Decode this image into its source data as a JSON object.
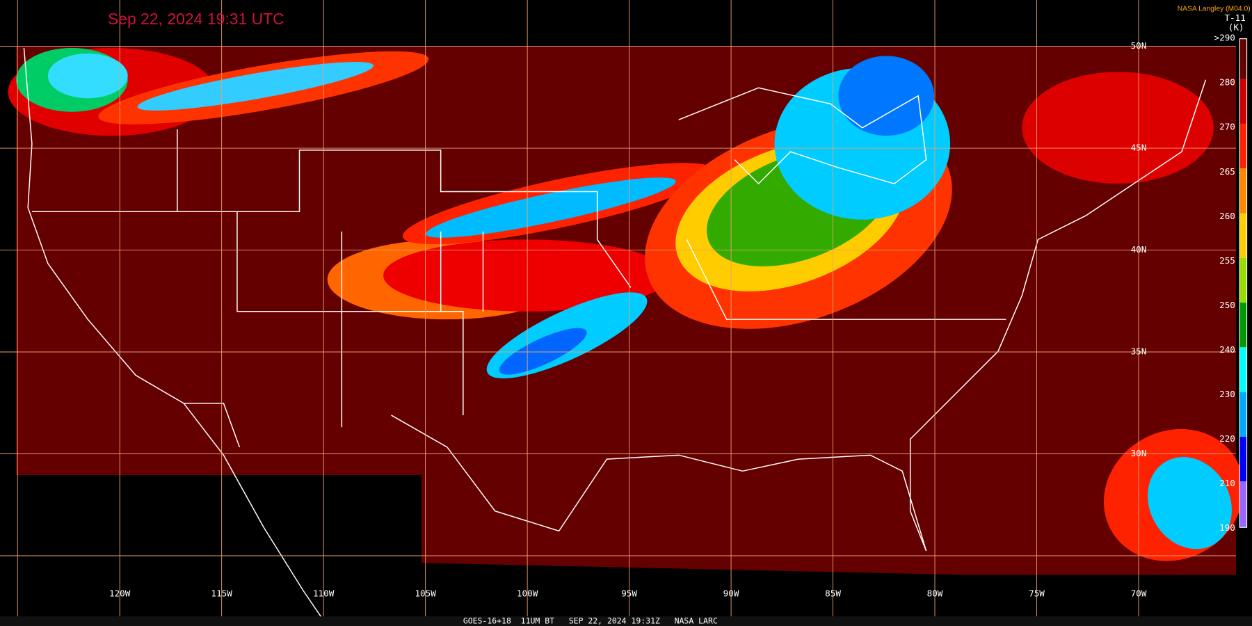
{
  "header": {
    "timestamp": "Sep 22, 2024 19:31 UTC",
    "credit": "NASA Langley (M04.0)",
    "product": "T-11",
    "unit": "(K)"
  },
  "legend": {
    "labels": [
      ">290",
      "280",
      "270",
      "265",
      "260",
      "255",
      "250",
      "240",
      "230",
      "220",
      "210",
      "190"
    ]
  },
  "longitude_labels": [
    "120W",
    "115W",
    "110W",
    "105W",
    "100W",
    "95W",
    "90W",
    "85W",
    "80W",
    "75W",
    "70W"
  ],
  "latitude_labels": [
    "50N",
    "45N",
    "40N",
    "35N",
    "30N"
  ],
  "footer": "GOES-16+18  11UM BT   SEP 22, 2024 19:31Z   NASA LARC"
}
